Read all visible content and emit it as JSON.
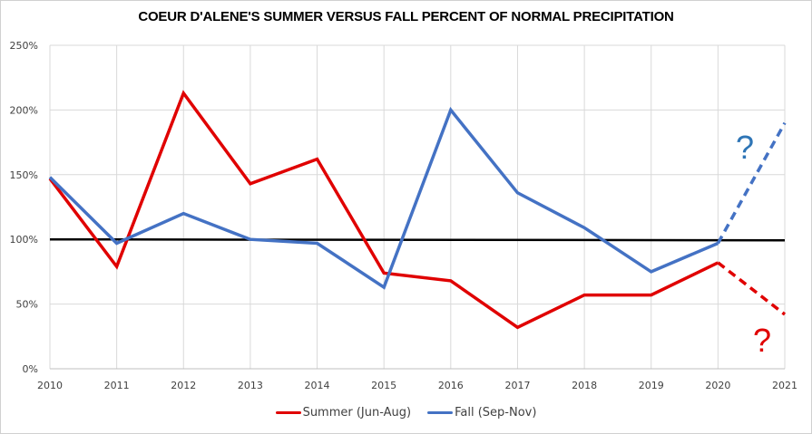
{
  "chart_data": {
    "type": "line",
    "title": "COEUR D'ALENE'S SUMMER VERSUS FALL PERCENT OF NORMAL PRECIPITATION",
    "xlabel": "",
    "ylabel": "",
    "x": [
      "2010",
      "2011",
      "2012",
      "2013",
      "2014",
      "2015",
      "2016",
      "2017",
      "2018",
      "2019",
      "2020",
      "2021"
    ],
    "ylim": [
      0,
      250
    ],
    "yticks": [
      0,
      50,
      100,
      150,
      200,
      250
    ],
    "ytick_labels": [
      "0%",
      "50%",
      "100%",
      "150%",
      "200%",
      "250%"
    ],
    "grid": true,
    "legend_position": "bottom",
    "series": [
      {
        "name": "Summer (Jun-Aug)",
        "color": "#e00000",
        "values": [
          147,
          79,
          213,
          143,
          162,
          74,
          68,
          32,
          57,
          57,
          82,
          42
        ],
        "dashed_from_index": 10
      },
      {
        "name": "Fall (Sep-Nov)",
        "color": "#4472c4",
        "values": [
          148,
          97,
          120,
          100,
          97,
          63,
          200,
          136,
          109,
          75,
          97,
          190
        ],
        "dashed_from_index": 10
      }
    ],
    "reference_line": {
      "value": 100,
      "color": "#000000"
    },
    "annotations": [
      {
        "text": "?",
        "color": "#2e75b6",
        "near": "Fall 2021"
      },
      {
        "text": "?",
        "color": "#e00000",
        "near": "Summer 2021"
      }
    ]
  }
}
